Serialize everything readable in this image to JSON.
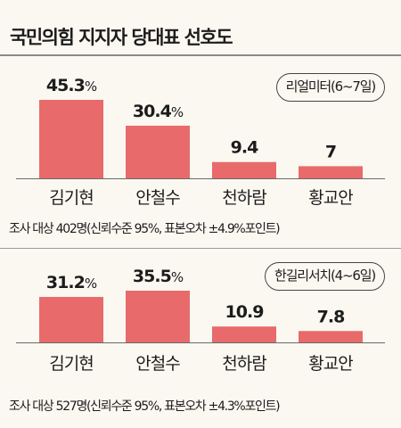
{
  "title": "국민의힘 지지자 당대표 선호도",
  "colors": {
    "bar": "#e86a6a",
    "axis": "#6a6a6a",
    "background": "#fbf8f1"
  },
  "chart_data": [
    {
      "type": "bar",
      "source": "리얼미터(6~7일)",
      "categories": [
        "김기현",
        "안철수",
        "천하람",
        "황교안"
      ],
      "values": [
        45.3,
        30.4,
        9.4,
        7
      ],
      "data_labels": [
        "45.3",
        "30.4",
        "9.4",
        "7"
      ],
      "data_label_units": [
        "%",
        "%",
        "",
        ""
      ],
      "ylim": [
        0,
        45.3
      ],
      "grid": false,
      "legend": "none",
      "note": "조사 대상 402명(신뢰수준 95%, 표본오차 ±4.9%포인트)"
    },
    {
      "type": "bar",
      "source": "한길리서치(4~6일)",
      "categories": [
        "김기현",
        "안철수",
        "천하람",
        "황교안"
      ],
      "values": [
        31.2,
        35.5,
        10.9,
        7.8
      ],
      "data_labels": [
        "31.2",
        "35.5",
        "10.9",
        "7.8"
      ],
      "data_label_units": [
        "%",
        "%",
        "",
        ""
      ],
      "ylim": [
        0,
        35.5
      ],
      "grid": false,
      "legend": "none",
      "note": "조사 대상 527명(신뢰수준 95%, 표본오차 ±4.3%포인트)"
    }
  ]
}
